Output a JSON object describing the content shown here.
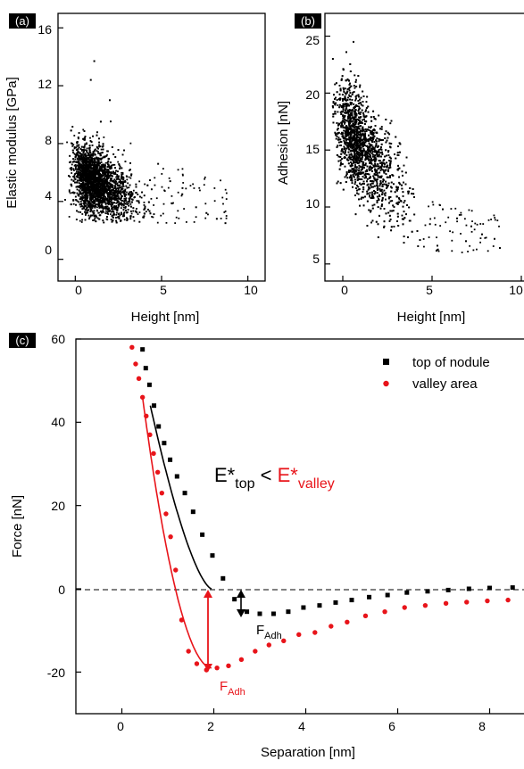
{
  "panels": {
    "a": {
      "tag": "(a)",
      "xlabel": "Height [nm]",
      "ylabel": "Elastic modulus [GPa]",
      "xticks": [
        "0",
        "5",
        "10"
      ],
      "yticks": [
        "0",
        "4",
        "8",
        "12",
        "16"
      ]
    },
    "b": {
      "tag": "(b)",
      "xlabel": "Height [nm]",
      "ylabel": "Adhesion [nN]",
      "xticks": [
        "0",
        "5",
        "10"
      ],
      "yticks": [
        "5",
        "10",
        "15",
        "20",
        "25"
      ]
    },
    "c": {
      "tag": "(c)",
      "xlabel": "Separation [nm]",
      "ylabel": "Force [nN]",
      "xticks": [
        "0",
        "2",
        "4",
        "6",
        "8"
      ],
      "yticks": [
        "-20",
        "0",
        "20",
        "40",
        "60"
      ],
      "legend_top": "top of nodule",
      "legend_valley": "valley area",
      "eq_left": "E*",
      "eq_left_sub": "top",
      "eq_lt": " < ",
      "eq_right": "E*",
      "eq_right_sub": "valley",
      "fadh": "F",
      "fadh_sub": "Adh"
    }
  },
  "colors": {
    "top": "#000000",
    "valley": "#e8141a"
  },
  "chart_data": [
    {
      "type": "scatter",
      "panel": "a",
      "xlabel": "Height [nm]",
      "ylabel": "Elastic modulus [GPa]",
      "xlim": [
        -1,
        11
      ],
      "ylim": [
        -1.5,
        17
      ],
      "note_points": "dense cloud centred near x=1.5 nm, y=5 GPa; outliers to x~9 nm and y~13.7 GPa",
      "density_core": {
        "x_center": 1.8,
        "y_center": 5.2
      },
      "outliers": [
        [
          1.1,
          13.7
        ],
        [
          0.9,
          12.4
        ],
        [
          2.0,
          11.0
        ],
        [
          4.8,
          6.6
        ],
        [
          5.5,
          5.4
        ],
        [
          6.2,
          4.5
        ],
        [
          7.0,
          3.6
        ],
        [
          7.6,
          3.2
        ],
        [
          8.2,
          2.8
        ],
        [
          8.7,
          2.5
        ]
      ]
    },
    {
      "type": "scatter",
      "panel": "b",
      "xlabel": "Height [nm]",
      "ylabel": "Adhesion [nN]",
      "xlim": [
        -1,
        11
      ],
      "ylim": [
        3.5,
        27
      ],
      "density_core": {
        "x_center": 1.6,
        "y_center": 14
      },
      "outliers": [
        [
          0.6,
          24.5
        ],
        [
          0.2,
          23.6
        ],
        [
          5.6,
          9.8
        ],
        [
          6.4,
          9.0
        ],
        [
          7.2,
          8.3
        ],
        [
          7.8,
          7.6
        ],
        [
          8.5,
          7.2
        ],
        [
          8.8,
          6.4
        ],
        [
          6.9,
          7.0
        ],
        [
          5.3,
          6.6
        ]
      ]
    },
    {
      "type": "scatter",
      "panel": "c",
      "xlabel": "Separation [nm]",
      "ylabel": "Force [nN]",
      "xlim": [
        -1,
        9
      ],
      "ylim": [
        -30,
        60
      ],
      "series": [
        {
          "name": "top of nodule",
          "marker": "square",
          "x": [
            0.45,
            0.52,
            0.6,
            0.7,
            0.8,
            0.92,
            1.05,
            1.2,
            1.37,
            1.55,
            1.75,
            1.97,
            2.2,
            2.45,
            2.72,
            3.0,
            3.3,
            3.62,
            3.95,
            4.3,
            4.65,
            5.0,
            5.38,
            5.78,
            6.2,
            6.65,
            7.1,
            7.55,
            8.0,
            8.5,
            8.95
          ],
          "y": [
            57.5,
            53,
            49,
            44,
            39,
            35,
            31,
            27,
            23,
            18.5,
            13,
            8,
            2.5,
            -2.5,
            -5.5,
            -6,
            -6,
            -5.5,
            -4.5,
            -4,
            -3.3,
            -2.7,
            -2,
            -1.5,
            -0.9,
            -0.6,
            -0.3,
            0,
            0.2,
            0.3,
            0.2
          ]
        },
        {
          "name": "valley area",
          "marker": "circle",
          "x": [
            0.22,
            0.3,
            0.37,
            0.45,
            0.53,
            0.61,
            0.69,
            0.78,
            0.87,
            0.96,
            1.06,
            1.17,
            1.3,
            1.45,
            1.63,
            1.84,
            2.07,
            2.32,
            2.6,
            2.9,
            3.2,
            3.52,
            3.85,
            4.2,
            4.55,
            4.9,
            5.3,
            5.72,
            6.15,
            6.6,
            7.05,
            7.5,
            7.95,
            8.4,
            8.85
          ],
          "y": [
            58,
            54,
            50.5,
            46,
            41.5,
            37,
            32.5,
            28,
            23,
            18,
            12.5,
            4.5,
            -7.5,
            -15,
            -18,
            -19.5,
            -19,
            -18.5,
            -17,
            -15,
            -13.5,
            -12.5,
            -11,
            -10.5,
            -9,
            -8,
            -6.5,
            -5.5,
            -4.5,
            -4,
            -3.5,
            -3.2,
            -2.9,
            -2.7,
            -2.5
          ]
        }
      ],
      "annotations": [
        "E*top < E*valley",
        "FAdh (black)",
        "FAdh (red)"
      ]
    }
  ]
}
